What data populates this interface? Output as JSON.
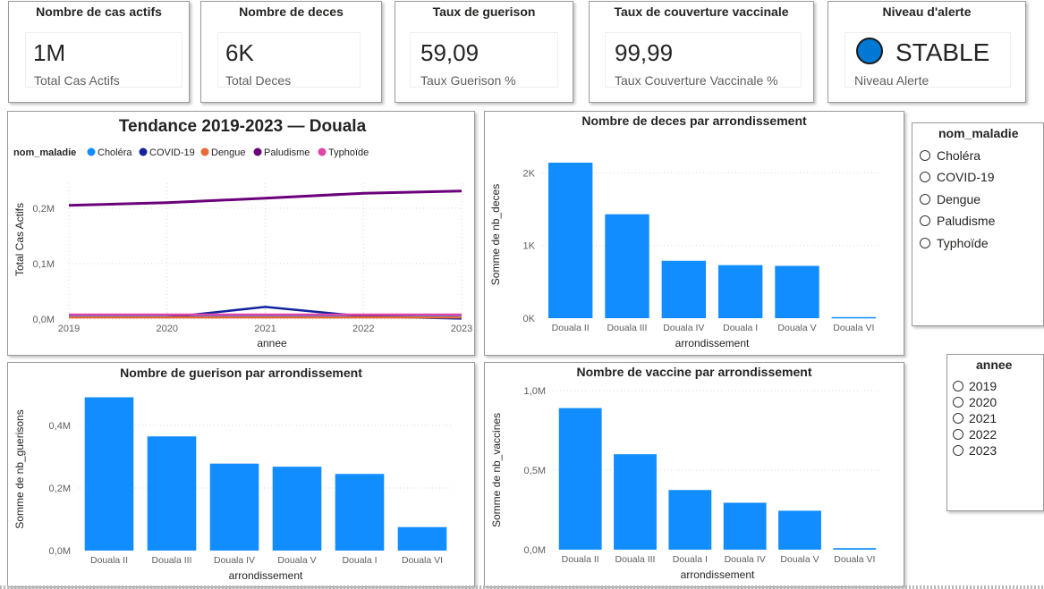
{
  "kpis": [
    {
      "title": "Nombre de cas actifs",
      "value": "1M",
      "label": "Total Cas Actifs"
    },
    {
      "title": "Nombre de deces",
      "value": "6K",
      "label": "Total Deces"
    },
    {
      "title": "Taux de guerison",
      "value": "59,09",
      "label": "Taux Guerison %"
    },
    {
      "title": "Taux de couverture vaccinale",
      "value": "99,99",
      "label": "Taux Couverture Vaccinale %"
    }
  ],
  "alert": {
    "title": "Niveau d'alerte",
    "value": "STABLE",
    "label": "Niveau Alerte",
    "dot_color": "#0078d4"
  },
  "colors": {
    "bar": "#118dff",
    "paludisme": "#6b007b",
    "covid": "#12239e",
    "cholera": "#118dff",
    "dengue": "#e66c37",
    "typhoide": "#e044a7"
  },
  "chart_data": [
    {
      "type": "line",
      "title": "Tendance 2019-2023 — Douala",
      "legend_title": "nom_maladie",
      "xlabel": "annee",
      "ylabel": "Total Cas Actifs",
      "x": [
        2019,
        2020,
        2021,
        2022,
        2023
      ],
      "x_tick_labels": [
        "2019",
        "2020",
        "2021",
        "2022",
        "2023"
      ],
      "y_tick_labels": [
        "0,0M",
        "0,1M",
        "0,2M"
      ],
      "y_tick_values": [
        0,
        100000,
        200000
      ],
      "ylim": [
        0,
        245000
      ],
      "series": [
        {
          "name": "Choléra",
          "color": "#118dff",
          "values": [
            5000,
            5000,
            6000,
            5000,
            5000
          ]
        },
        {
          "name": "COVID-19",
          "color": "#12239e",
          "values": [
            null,
            3000,
            22000,
            5000,
            1000
          ]
        },
        {
          "name": "Dengue",
          "color": "#e66c37",
          "values": [
            3000,
            3000,
            3000,
            3000,
            3000
          ]
        },
        {
          "name": "Paludisme",
          "color": "#6b007b",
          "values": [
            205000,
            210000,
            218000,
            227000,
            231000
          ]
        },
        {
          "name": "Typhoïde",
          "color": "#e044a7",
          "values": [
            8000,
            8000,
            8000,
            8000,
            8000
          ]
        }
      ]
    },
    {
      "type": "bar",
      "title": "Nombre de deces par arrondissement",
      "xlabel": "arrondissement",
      "ylabel": "Somme de nb_deces",
      "categories": [
        "Douala II",
        "Douala III",
        "Douala IV",
        "Douala I",
        "Douala V",
        "Douala VI"
      ],
      "values": [
        2140,
        1430,
        790,
        730,
        720,
        15
      ],
      "y_tick_labels": [
        "0K",
        "1K",
        "2K"
      ],
      "y_tick_values": [
        0,
        1000,
        2000
      ],
      "ylim": [
        0,
        2300
      ]
    },
    {
      "type": "bar",
      "title": "Nombre de guerison par arrondissement",
      "xlabel": "arrondissement",
      "ylabel": "Somme de nb_guerisons",
      "categories": [
        "Douala II",
        "Douala III",
        "Douala IV",
        "Douala V",
        "Douala I",
        "Douala VI"
      ],
      "values": [
        490000,
        365000,
        278000,
        268000,
        245000,
        75000
      ],
      "y_tick_labels": [
        "0,0M",
        "0,2M",
        "0,4M"
      ],
      "y_tick_values": [
        0,
        200000,
        400000
      ],
      "ylim": [
        0,
        520000
      ]
    },
    {
      "type": "bar",
      "title": "Nombre de vaccine par arrondissement",
      "xlabel": "arrondissement",
      "ylabel": "Somme de nb_vaccines",
      "categories": [
        "Douala II",
        "Douala III",
        "Douala I",
        "Douala IV",
        "Douala V",
        "Douala VI"
      ],
      "values": [
        890000,
        600000,
        375000,
        295000,
        245000,
        10000
      ],
      "y_tick_labels": [
        "0,0M",
        "0,5M",
        "1,0M"
      ],
      "y_tick_values": [
        0,
        500000,
        1000000
      ],
      "ylim": [
        0,
        1000000
      ]
    }
  ],
  "slicer_maladie": {
    "title": "nom_maladie",
    "items": [
      "Choléra",
      "COVID-19",
      "Dengue",
      "Paludisme",
      "Typhoïde"
    ]
  },
  "slicer_annee": {
    "title": "annee",
    "items": [
      "2019",
      "2020",
      "2021",
      "2022",
      "2023"
    ]
  }
}
